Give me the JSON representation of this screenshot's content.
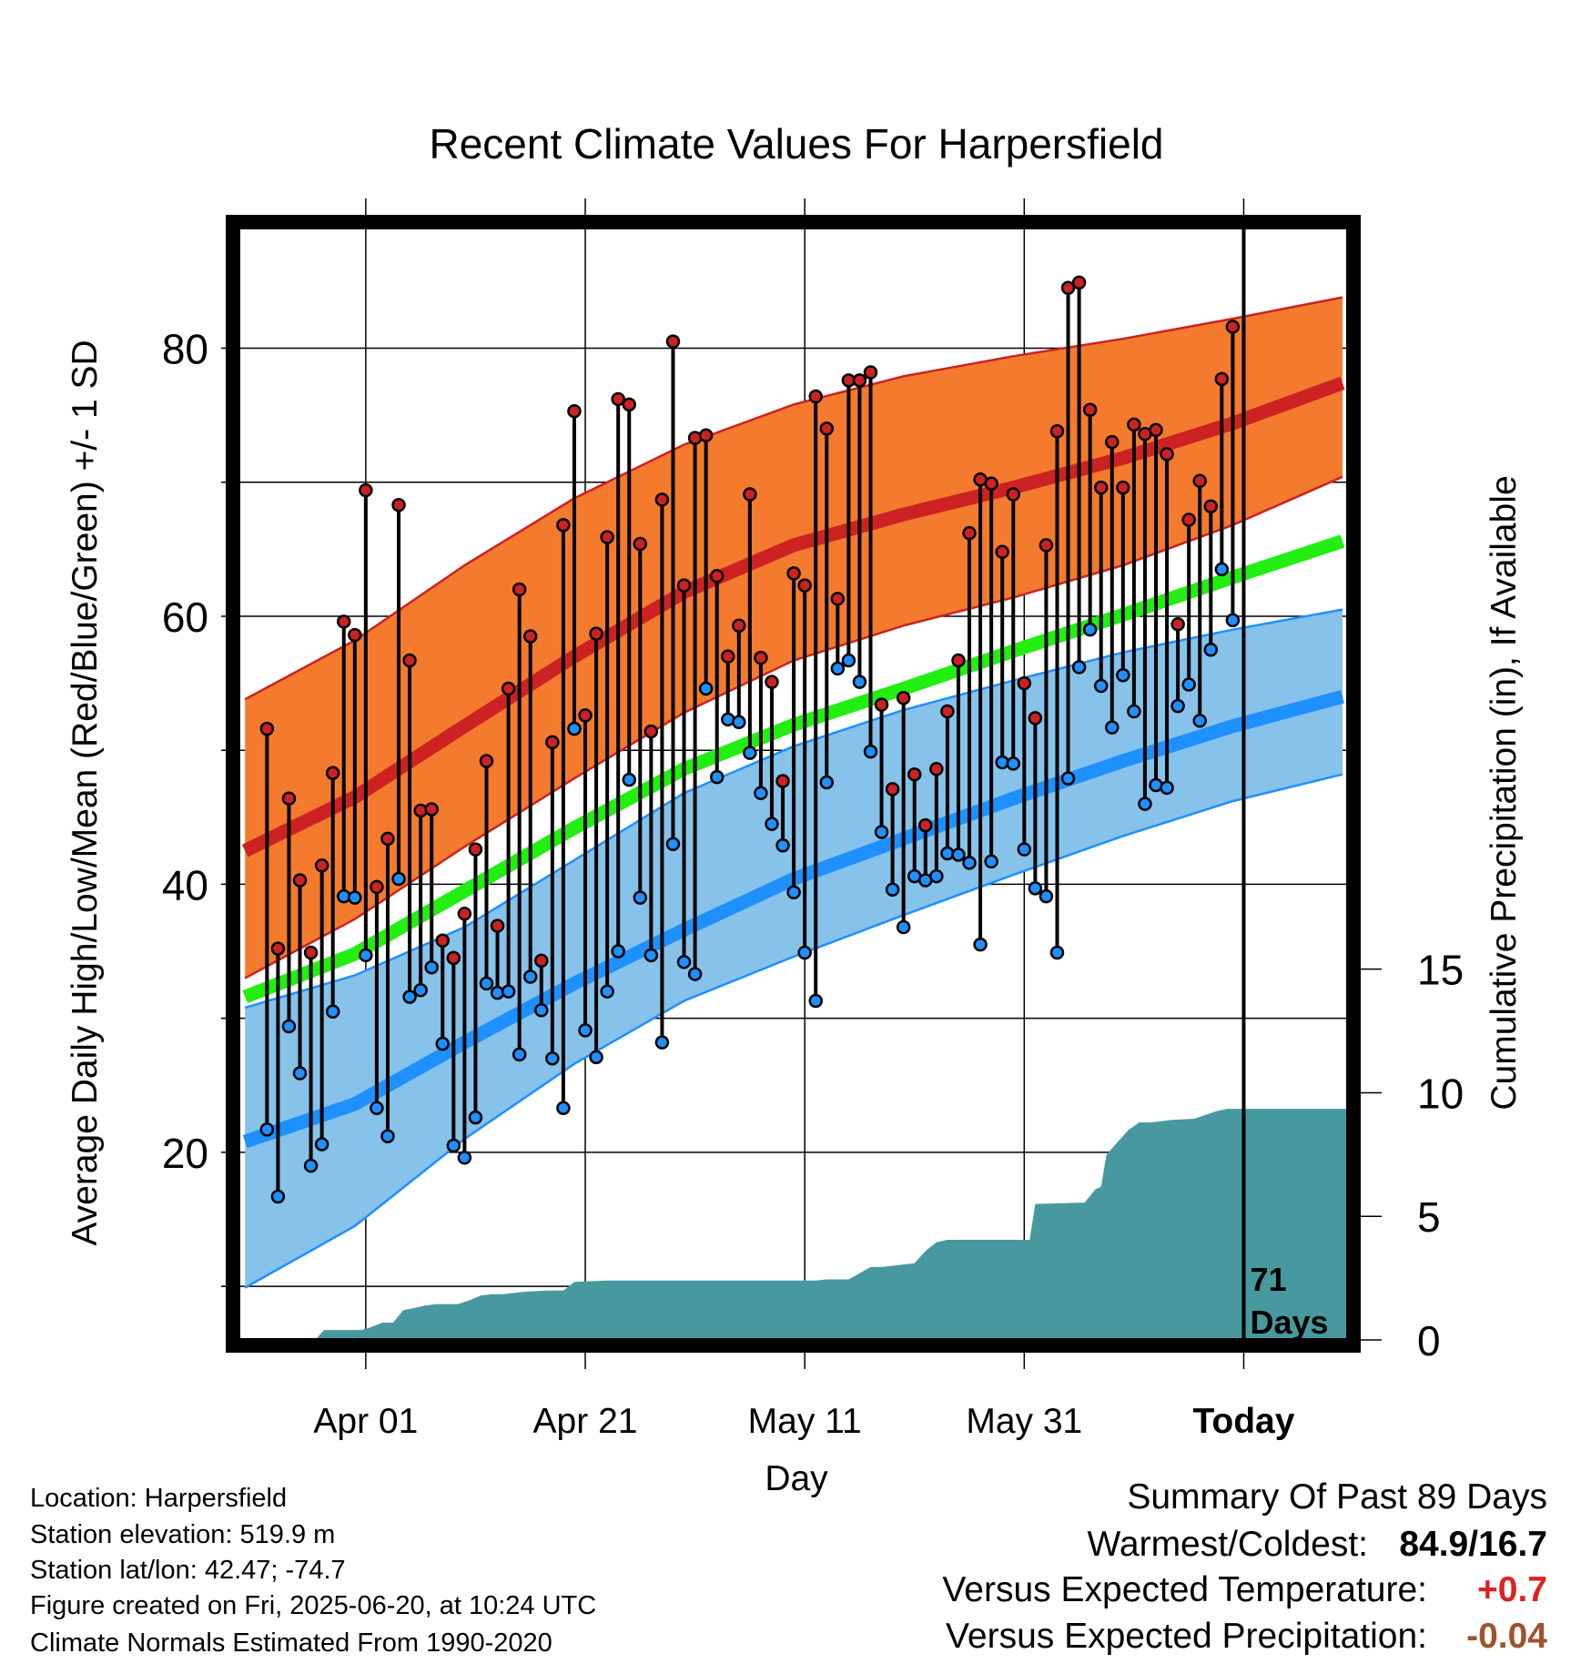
{
  "colors": {
    "high": "#cc2222",
    "high_band": "#f47a2e",
    "low": "#1e90ff",
    "low_band": "#86c2ea",
    "mean": "#22ee11",
    "precip": "#48999f",
    "plus_color": "#dd2222",
    "minus_color": "#a0522d"
  },
  "chart_data": {
    "type": "line",
    "title": "Recent Climate Values For Harpersfield",
    "xlabel": "Day",
    "ylabel": "Average Daily High/Low/Mean (Red/Blue/Green) +/- 1 SD",
    "y2label": "Cumulative Precipitation (in), If Available",
    "ylim": [
      6,
      89
    ],
    "y2lim": [
      0,
      45
    ],
    "y_ticks": [
      20,
      40,
      60,
      80
    ],
    "y2_ticks": [
      0,
      5,
      10,
      15
    ],
    "xlim": [
      -0.6,
      100.5
    ],
    "x_ticks": [
      {
        "day": 11,
        "label": "Apr 01"
      },
      {
        "day": 31,
        "label": "Apr 21"
      },
      {
        "day": 51,
        "label": "May 11"
      },
      {
        "day": 71,
        "label": "May 31"
      },
      {
        "day": 91,
        "label": "Today"
      }
    ],
    "grid": true,
    "x_origin_note": "x = day offset from Mar 21",
    "today_day": 91,
    "today_label": "71\nDays",
    "normals": {
      "x": [
        0,
        10,
        20,
        30,
        40,
        50,
        60,
        70,
        80,
        90,
        100
      ],
      "high_mean": [
        42.5,
        46.5,
        51.8,
        57.0,
        61.8,
        65.3,
        67.6,
        69.6,
        71.8,
        74.4,
        77.4
      ],
      "high_upper": [
        53.8,
        58.2,
        63.8,
        68.8,
        72.8,
        75.8,
        77.9,
        79.4,
        80.7,
        82.2,
        83.8
      ],
      "high_lower": [
        33.0,
        37.4,
        42.8,
        47.9,
        52.8,
        56.7,
        59.3,
        61.4,
        63.8,
        66.8,
        70.4
      ],
      "mean": [
        31.6,
        34.8,
        39.5,
        44.2,
        48.6,
        51.9,
        54.6,
        57.4,
        60.1,
        62.9,
        65.6
      ],
      "low_mean": [
        20.8,
        23.6,
        28.2,
        32.6,
        36.6,
        40.4,
        43.4,
        46.4,
        49.2,
        51.8,
        54.0
      ],
      "low_upper": [
        30.8,
        33.2,
        36.8,
        41.8,
        46.8,
        50.3,
        53.0,
        55.2,
        57.3,
        59.0,
        60.5
      ],
      "low_lower": [
        9.9,
        14.5,
        21.0,
        26.6,
        31.3,
        34.6,
        37.7,
        40.7,
        43.6,
        46.2,
        48.2
      ]
    },
    "daily_start_day": 2,
    "daily_high": [
      51.6,
      35.2,
      46.4,
      40.3,
      34.9,
      41.4,
      48.3,
      59.6,
      58.6,
      69.4,
      39.8,
      43.4,
      68.3,
      56.7,
      45.5,
      45.6,
      35.8,
      34.5,
      37.8,
      42.6,
      49.2,
      36.9,
      54.6,
      62.0,
      58.5,
      34.3,
      50.6,
      66.8,
      75.3,
      52.6,
      58.7,
      65.9,
      76.2,
      75.8,
      65.4,
      51.4,
      68.7,
      80.5,
      62.3,
      73.3,
      73.5,
      63.0,
      57.0,
      59.3,
      69.1,
      56.9,
      55.1,
      47.7,
      63.2,
      62.3,
      76.4,
      74.0,
      61.3,
      77.6,
      77.6,
      78.2,
      53.4,
      47.1,
      53.9,
      48.2,
      44.4,
      48.6,
      52.9,
      56.7,
      66.2,
      70.2,
      69.9,
      64.8,
      69.1,
      55.0,
      52.4,
      65.3,
      73.8,
      84.5,
      84.9,
      75.4,
      69.6,
      73.0,
      69.6,
      74.3,
      73.6,
      73.9,
      72.1,
      59.4,
      67.2,
      70.1,
      68.2,
      77.7,
      81.6
    ],
    "daily_low": [
      21.7,
      16.7,
      29.4,
      25.9,
      19.0,
      20.6,
      30.5,
      39.1,
      39.0,
      34.7,
      23.3,
      21.2,
      40.4,
      31.6,
      32.1,
      33.8,
      28.1,
      20.5,
      19.6,
      22.6,
      32.6,
      31.9,
      32.0,
      27.3,
      33.1,
      30.6,
      27.0,
      23.3,
      51.6,
      29.1,
      27.1,
      32.0,
      35.0,
      47.8,
      39.0,
      34.7,
      28.2,
      43.0,
      34.2,
      33.3,
      54.6,
      48.0,
      52.3,
      52.1,
      49.8,
      46.8,
      44.5,
      42.9,
      39.4,
      34.9,
      31.3,
      47.6,
      56.1,
      56.7,
      55.1,
      49.9,
      43.9,
      39.6,
      36.8,
      40.6,
      40.3,
      40.6,
      42.3,
      42.2,
      41.6,
      35.5,
      41.7,
      49.1,
      49.0,
      42.6,
      39.7,
      39.1,
      34.9,
      47.9,
      56.2,
      59.0,
      54.8,
      51.7,
      55.6,
      52.9,
      46.0,
      47.4,
      47.2,
      53.3,
      54.9,
      52.2,
      57.5,
      63.5,
      59.7
    ],
    "precip": {
      "x": [
        -0.6,
        6.4,
        7.2,
        10.6,
        11.4,
        12.5,
        13.5,
        14.4,
        15.5,
        16.5,
        17.5,
        18.5,
        19.4,
        20.4,
        21.5,
        22.5,
        23.5,
        25.5,
        27.5,
        29.0,
        30.0,
        33.0,
        35.0,
        52.0,
        53.0,
        55.0,
        57.0,
        58.0,
        61.0,
        62.0,
        63.0,
        64.0,
        65.0,
        66.0,
        68.0,
        71.5,
        72.0,
        76.0,
        76.5,
        77.5,
        78.0,
        78.5,
        80.5,
        81.5,
        82.5,
        84.5,
        86.5,
        88.5,
        89.5,
        90.5,
        100.5
      ],
      "y": [
        0,
        0,
        0.4,
        0.4,
        0.5,
        0.7,
        0.7,
        1.2,
        1.3,
        1.4,
        1.45,
        1.45,
        1.45,
        1.6,
        1.8,
        1.85,
        1.85,
        1.95,
        2.0,
        2.0,
        2.35,
        2.4,
        2.4,
        2.4,
        2.45,
        2.45,
        2.95,
        2.95,
        3.1,
        3.6,
        3.95,
        4.05,
        4.05,
        4.05,
        4.05,
        4.05,
        5.5,
        5.55,
        5.55,
        6.1,
        6.2,
        7.5,
        8.5,
        8.8,
        8.8,
        8.9,
        8.95,
        9.25,
        9.35,
        9.35,
        9.35
      ]
    }
  },
  "meta": {
    "location": "Location: Harpersfield",
    "elevation": "Station elevation: 519.9 m",
    "latlon": "Station lat/lon: 42.47; -74.7",
    "created": "Figure created on Fri, 2025-06-20, at 10:24 UTC",
    "normals": "Climate Normals Estimated From 1990-2020"
  },
  "summary": {
    "title": "Summary Of Past 89 Days",
    "warmest_label": "Warmest/Coldest:",
    "warmest_value": "84.9/16.7",
    "temp_label": "Versus Expected Temperature:",
    "temp_value": "+0.7",
    "precip_label": "Versus Expected Precipitation:",
    "precip_value": "-0.04"
  }
}
